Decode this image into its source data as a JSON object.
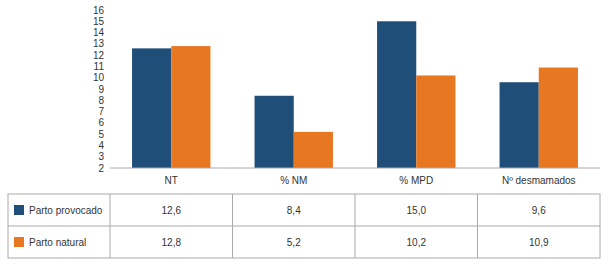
{
  "chart_data": {
    "type": "bar",
    "categories": [
      "NT",
      "% NM",
      "% MPD",
      "Nº desmamados"
    ],
    "series": [
      {
        "name": "Parto provocado",
        "color": "#1F4E79",
        "values": [
          12.6,
          8.4,
          15.0,
          9.6
        ],
        "value_labels": [
          "12,6",
          "8,4",
          "15,0",
          "9,6"
        ]
      },
      {
        "name": "Parto natural",
        "color": "#E87722",
        "values": [
          12.8,
          5.2,
          10.2,
          10.9
        ],
        "value_labels": [
          "12,8",
          "5,2",
          "10,2",
          "10,9"
        ]
      }
    ],
    "ylim": [
      2,
      16
    ],
    "yticks": [
      2,
      3,
      4,
      5,
      6,
      7,
      8,
      9,
      10,
      11,
      12,
      13,
      14,
      15,
      16
    ],
    "grid": false,
    "legend": "bottom"
  }
}
